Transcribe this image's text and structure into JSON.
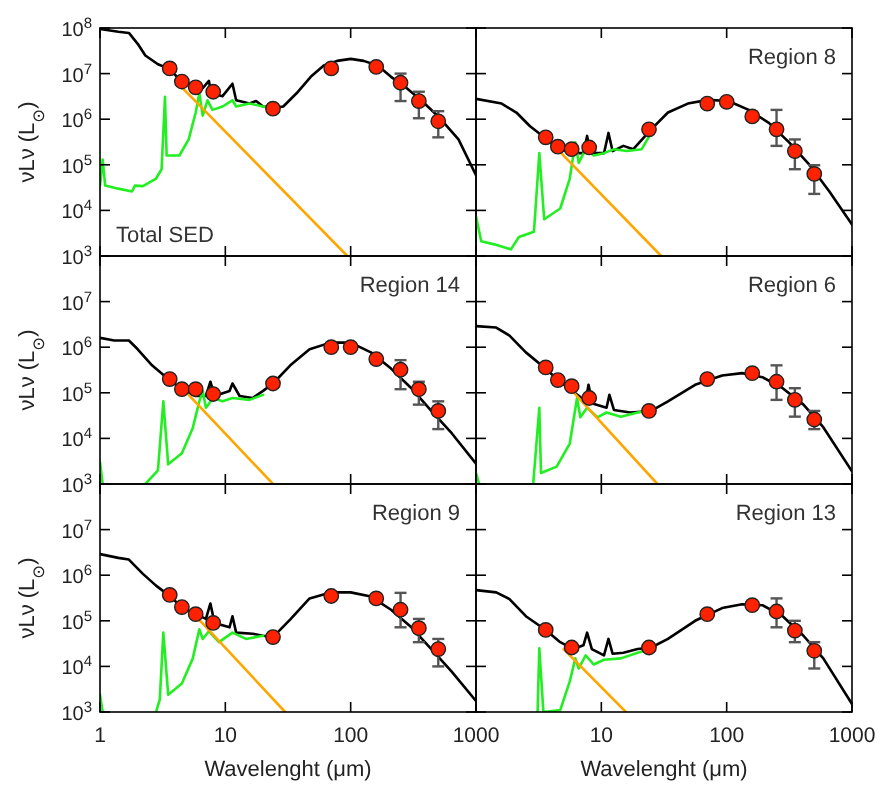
{
  "chart_data": [
    {
      "type": "line",
      "ylabel": "νLν (L$_{⊙}$)",
      "xlim": [
        1,
        1000
      ],
      "ylim": [
        1000,
        100000000
      ],
      "log": "xy",
      "tick_labels": "y",
      "xticks": [
        1,
        10,
        100,
        1000
      ],
      "yticks": [
        {
          "value": 1000,
          "label": "10$^{3}$"
        },
        {
          "value": 10000,
          "label": "10$^{4}$"
        },
        {
          "value": 100000,
          "label": "10$^{5}$"
        },
        {
          "value": 1000000,
          "label": "10$^{6}$"
        },
        {
          "value": 10000000,
          "label": "10$^{7}$"
        },
        {
          "value": 100000000,
          "label": "10$^{8}$"
        }
      ],
      "annotations": [
        "Total SED"
      ],
      "series": [
        {
          "color": "#000000",
          "x": [
            1,
            1.4,
            1.7,
            2,
            2.3,
            2.9,
            3.5,
            4.3,
            5.5,
            6.6,
            7.4,
            7.7,
            9.5,
            11.4,
            12.2,
            15.6,
            17.6,
            20,
            24,
            29,
            37,
            48,
            61,
            78,
            100,
            127,
            164,
            210,
            270,
            365,
            500,
            725,
            1000
          ],
          "values": [
            95000000.0,
            83000000.0,
            78000000.0,
            45000000.0,
            25000000.0,
            16000000.0,
            13000000.0,
            7600000.0,
            5500000.0,
            4800000.0,
            6900000.0,
            3700000.0,
            3200000.0,
            6000000.0,
            2600000.0,
            2200000.0,
            2500000.0,
            1900000.0,
            1750000.0,
            1900000.0,
            3700000.0,
            8500000.0,
            15000000.0,
            19000000.0,
            21000000.0,
            19000000.0,
            15000000.0,
            8500000.0,
            5200000.0,
            2600000.0,
            1150000.0,
            360000.0,
            59000.0
          ]
        },
        {
          "color": "#22ee22",
          "x": [
            1,
            1.05,
            1.1,
            1.4,
            1.8,
            1.9,
            2.2,
            2.8,
            3.1,
            3.3,
            3.4,
            4.3,
            5.1,
            5.8,
            6.2,
            6.6,
            7.2,
            7.9,
            9.5,
            11.4,
            12.2,
            15.6,
            20,
            24
          ],
          "values": [
            35000.0,
            130000.0,
            35000.0,
            30000.0,
            26000.0,
            35000.0,
            34000.0,
            50000.0,
            80000.0,
            3100000.0,
            160000.0,
            160000.0,
            360000.0,
            1400000.0,
            3700000.0,
            1200000.0,
            2600000.0,
            1600000.0,
            1900000.0,
            2600000.0,
            1900000.0,
            2200000.0,
            1900000.0,
            1750000.0
          ]
        },
        {
          "color": "#ffa500",
          "x": [
            4.5,
            94
          ],
          "values": [
            5000000.0,
            1000
          ]
        },
        {
          "type": "scatter",
          "marker": "circle",
          "color": "#ff2200",
          "x": [
            3.6,
            4.5,
            5.8,
            8,
            24,
            70,
            160,
            250,
            350,
            500
          ],
          "values": [
            13000000.0,
            6700000.0,
            5000000.0,
            4000000.0,
            1700000.0,
            13000000.0,
            14000000.0,
            6300000.0,
            2500000.0,
            900000.0
          ],
          "errors": [
            null,
            null,
            null,
            null,
            null,
            null,
            null,
            [
              2500000.0,
              10000000.0
            ],
            [
              1050000.0,
              4000000.0
            ],
            [
              400000.0,
              1500000.0
            ]
          ]
        }
      ]
    },
    {
      "type": "line",
      "xlim": [
        1,
        1000
      ],
      "ylim": [
        1000,
        100000000
      ],
      "log": "xy",
      "tick_labels": false,
      "xticks": [
        1,
        10,
        100,
        1000
      ],
      "yticks": [
        1000,
        10000,
        100000,
        1000000,
        10000000,
        100000000
      ],
      "annotations": [
        "Region 8"
      ],
      "series": [
        {
          "color": "#000000",
          "x": [
            1,
            1.6,
            2.1,
            2.7,
            3.5,
            4.7,
            6,
            7.2,
            7.7,
            8.2,
            10.5,
            11.4,
            12.3,
            15,
            18,
            25,
            34,
            49,
            71,
            103,
            150,
            217,
            315,
            460,
            660,
            1000
          ],
          "values": [
            2800000.0,
            2200000.0,
            1400000.0,
            700000.0,
            400000.0,
            220000.0,
            180000.0,
            180000.0,
            430000.0,
            180000.0,
            180000.0,
            500000.0,
            200000.0,
            260000.0,
            220000.0,
            600000.0,
            1400000.0,
            2200000.0,
            2650000.0,
            2500000.0,
            1600000.0,
            830000.0,
            310000.0,
            98000.0,
            26000.0,
            4900.0
          ]
        },
        {
          "color": "#22ee22",
          "x": [
            1,
            1.1,
            1.4,
            1.9,
            2.2,
            2.9,
            3.2,
            3.5,
            4.7,
            5.6,
            6.2,
            6.6,
            7.5,
            8.7,
            10.5,
            12.6,
            16,
            21,
            25
          ],
          "values": [
            7400.0,
            2100.0,
            1800.0,
            1400.0,
            2600.0,
            3400.0,
            180000.0,
            6400.0,
            11000.0,
            50000.0,
            310000.0,
            110000.0,
            220000.0,
            160000.0,
            180000.0,
            220000.0,
            200000.0,
            220000.0,
            500000.0
          ]
        },
        {
          "color": "#ffa500",
          "x": [
            4.7,
            30
          ],
          "values": [
            190000.0,
            1000
          ]
        },
        {
          "type": "scatter",
          "marker": "circle",
          "color": "#ff2200",
          "x": [
            3.6,
            4.5,
            5.8,
            8,
            24,
            70,
            100,
            160,
            250,
            350,
            500
          ],
          "values": [
            400000.0,
            250000.0,
            220000.0,
            240000.0,
            600000.0,
            2200000.0,
            2400000.0,
            1150000.0,
            600000.0,
            200000.0,
            63000.0
          ],
          "errors": [
            null,
            null,
            null,
            null,
            null,
            null,
            null,
            null,
            [
              260000.0,
              1600000.0
            ],
            [
              80000.0,
              360000.0
            ],
            [
              23000.0,
              98000.0
            ]
          ]
        }
      ]
    },
    {
      "type": "line",
      "ylabel": "νLν (L$_{⊙}$)",
      "xlim": [
        1,
        1000
      ],
      "ylim": [
        1000,
        100000000
      ],
      "log": "xy",
      "tick_labels": "y",
      "xticks": [
        1,
        10,
        100,
        1000
      ],
      "yticks": [
        {
          "value": 1000,
          "label": "10$^{3}$"
        },
        {
          "value": 10000,
          "label": "10$^{4}$"
        },
        {
          "value": 100000,
          "label": "10$^{5}$"
        },
        {
          "value": 1000000,
          "label": "10$^{6}$"
        },
        {
          "value": 10000000,
          "label": "10$^{7}$"
        },
        {
          "value": 100000000,
          "label": null
        }
      ],
      "annotations": [
        "Region 14"
      ],
      "series": [
        {
          "color": "#000000",
          "x": [
            1,
            1.3,
            1.7,
            2,
            2.6,
            3.5,
            4.5,
            5.8,
            7,
            7.6,
            8.2,
            10.8,
            11.4,
            13,
            16.5,
            20,
            24,
            33,
            47,
            69,
            100,
            145,
            210,
            305,
            440,
            640,
            1000
          ],
          "values": [
            1600000.0,
            1400000.0,
            1400000.0,
            900000.0,
            400000.0,
            200000.0,
            120000.0,
            85000.0,
            85000.0,
            175000.0,
            85000.0,
            110000.0,
            160000.0,
            85000.0,
            77000.0,
            110000.0,
            160000.0,
            400000.0,
            900000.0,
            1260000.0,
            1260000.0,
            770000.0,
            340000.0,
            126000.0,
            40000.0,
            13000.0,
            2800.0
          ]
        },
        {
          "color": "#22ee22",
          "x": [
            1,
            1.05,
            1.1,
            2.3,
            2.9,
            3.2,
            3.5,
            4.5,
            5.5,
            6.2,
            6.6,
            7,
            8,
            9.5,
            11.4,
            15.6,
            20
          ],
          "values": [
            3000.0,
            1000,
            null,
            1000,
            2000.0,
            65000.0,
            2700.0,
            4700.0,
            17000.0,
            65000.0,
            110000.0,
            47000.0,
            77000.0,
            65000.0,
            77000.0,
            70000.0,
            90000.0
          ]
        },
        {
          "color": "#ffa500",
          "x": [
            5.1,
            24
          ],
          "values": [
            90000.0,
            1000
          ]
        },
        {
          "type": "scatter",
          "marker": "circle",
          "color": "#ff2200",
          "x": [
            3.6,
            4.5,
            5.8,
            8,
            24,
            70,
            100,
            160,
            250,
            350,
            500
          ],
          "values": [
            200000.0,
            120000.0,
            120000.0,
            94000.0,
            160000.0,
            1000000.0,
            1000000.0,
            550000.0,
            320000.0,
            120000.0,
            40000.0
          ],
          "errors": [
            null,
            null,
            null,
            null,
            null,
            null,
            null,
            null,
            [
              120000.0,
              520000.0
            ],
            [
              55000.0,
              175000.0
            ],
            [
              16000.0,
              65000.0
            ]
          ]
        }
      ]
    },
    {
      "type": "line",
      "xlim": [
        1,
        1000
      ],
      "ylim": [
        1000,
        100000000
      ],
      "log": "xy",
      "tick_labels": false,
      "xticks": [
        1,
        10,
        100,
        1000
      ],
      "yticks": [
        1000,
        10000,
        100000,
        1000000,
        10000000,
        100000000
      ],
      "annotations": [
        "Region 6"
      ],
      "series": [
        {
          "color": "#000000",
          "x": [
            1,
            1.45,
            1.85,
            2.5,
            3.5,
            4.7,
            6,
            7.5,
            7.9,
            8.5,
            11,
            11.6,
            12.6,
            17,
            25,
            34,
            56,
            92,
            133,
            193,
            280,
            410,
            590,
            1000
          ],
          "values": [
            2900000.0,
            2700000.0,
            1800000.0,
            770000.0,
            360000.0,
            175000.0,
            106000.0,
            65000.0,
            150000.0,
            58000.0,
            47000.0,
            90000.0,
            42000.0,
            37000.0,
            40000.0,
            65000.0,
            150000.0,
            240000.0,
            270000.0,
            220000.0,
            126000.0,
            55000.0,
            17600.0,
            1900.0
          ]
        },
        {
          "color": "#22ee22",
          "x": [
            1,
            1.06,
            1.1,
            2.86,
            3.2,
            3.3,
            4.4,
            5.6,
            6.4,
            6.8,
            7.7,
            9.3,
            11,
            14.3,
            19.5,
            25
          ],
          "values": [
            1750.0,
            1000,
            null,
            1000,
            47000.0,
            1750.0,
            2400.0,
            7700.0,
            77000.0,
            29000.0,
            47000.0,
            29000.0,
            37000.0,
            30000.0,
            37000.0,
            42000.0
          ]
        },
        {
          "color": "#ffa500",
          "x": [
            5.6,
            28
          ],
          "values": [
            126000.0,
            1000
          ]
        },
        {
          "type": "scatter",
          "marker": "circle",
          "color": "#ff2200",
          "x": [
            3.6,
            4.5,
            5.8,
            8,
            24,
            70,
            160,
            250,
            350,
            500
          ],
          "values": [
            360000.0,
            190000.0,
            140000.0,
            77000.0,
            40000.0,
            200000.0,
            270000.0,
            175000.0,
            70000.0,
            26000.0
          ],
          "errors": [
            null,
            null,
            null,
            null,
            null,
            null,
            null,
            [
              70000.0,
              400000.0
            ],
            [
              30000.0,
              126000.0
            ],
            [
              16000.0,
              40000.0
            ]
          ]
        }
      ]
    },
    {
      "type": "line",
      "xlabel": "Wavelenght (μm)",
      "ylabel": "νLν (L$_{⊙}$)",
      "xlim": [
        1,
        1000
      ],
      "ylim": [
        1000,
        100000000
      ],
      "log": "xy",
      "xticks": [
        1,
        10,
        100,
        1000
      ],
      "yticks": [
        {
          "value": 1000,
          "label": "10$^{3}$"
        },
        {
          "value": 10000,
          "label": "10$^{4}$"
        },
        {
          "value": 100000,
          "label": "10$^{5}$"
        },
        {
          "value": 1000000,
          "label": "10$^{6}$"
        },
        {
          "value": 10000000,
          "label": "10$^{7}$"
        },
        {
          "value": 100000000,
          "label": null
        }
      ],
      "annotations": [
        "Region 9"
      ],
      "series": [
        {
          "color": "#000000",
          "x": [
            1,
            1.4,
            1.7,
            2.2,
            2.8,
            3.5,
            4.5,
            5.8,
            7,
            7.6,
            8.2,
            10.8,
            11.4,
            12.2,
            16.5,
            20,
            24,
            33,
            47,
            69,
            100,
            145,
            210,
            305,
            440,
            640,
            1000
          ],
          "values": [
            2900000.0,
            2400000.0,
            2200000.0,
            1070000.0,
            590000.0,
            370000.0,
            200000.0,
            140000.0,
            110000.0,
            240000.0,
            90000.0,
            72000.0,
            126000.0,
            55000.0,
            52000.0,
            47000.0,
            44000.0,
            107000.0,
            310000.0,
            420000.0,
            420000.0,
            340000.0,
            175000.0,
            72000.0,
            24000.0,
            7700.0,
            1750.0
          ]
        },
        {
          "color": "#22ee22",
          "x": [
            1,
            1.05,
            1.1,
            2.8,
            3,
            3.2,
            3.5,
            4.5,
            5.5,
            6.2,
            6.6,
            7.4,
            8.9,
            11.4,
            14.6,
            20
          ],
          "values": [
            2400.0,
            1000,
            null,
            1000,
            1900.0,
            55000.0,
            2400.0,
            4200.0,
            15000.0,
            65000.0,
            40000.0,
            59000.0,
            34000.0,
            55000.0,
            40000.0,
            47000.0
          ]
        },
        {
          "color": "#ffa500",
          "x": [
            5.5,
            30
          ],
          "values": [
            150000.0,
            1000
          ]
        },
        {
          "type": "scatter",
          "marker": "circle",
          "color": "#ff2200",
          "x": [
            3.6,
            4.5,
            5.8,
            8,
            24,
            70,
            160,
            250,
            350,
            500
          ],
          "values": [
            370000.0,
            200000.0,
            140000.0,
            90000.0,
            44000.0,
            350000.0,
            310000.0,
            175000.0,
            69000.0,
            24000.0
          ],
          "errors": [
            null,
            null,
            null,
            null,
            null,
            null,
            null,
            [
              72000.0,
              410000.0
            ],
            [
              34000.0,
              110000.0
            ],
            [
              10000.0,
              40000.0
            ]
          ]
        }
      ]
    },
    {
      "type": "line",
      "xlabel": "Wavelenght (μm)",
      "xlim": [
        1,
        1000
      ],
      "ylim": [
        1000,
        100000000
      ],
      "log": "xy",
      "tick_labels": "x",
      "xticks": [
        10,
        100,
        1000
      ],
      "yticks": [
        1000,
        10000,
        100000,
        1000000,
        10000000,
        100000000
      ],
      "annotations": [
        "Region 13"
      ],
      "series": [
        {
          "color": "#000000",
          "x": [
            1,
            1.45,
            1.85,
            2.5,
            3.6,
            4.7,
            6,
            7.2,
            7.7,
            8.4,
            10.5,
            11.4,
            12.3,
            15,
            19.5,
            25,
            34,
            56,
            92,
            133,
            193,
            280,
            410,
            590,
            1000
          ],
          "values": [
            470000.0,
            420000.0,
            300000.0,
            126000.0,
            63000.0,
            34000.0,
            24000.0,
            29000.0,
            55000.0,
            24000.0,
            17500.0,
            40000.0,
            19000.0,
            20000.0,
            24000.0,
            26000.0,
            40000.0,
            100000.0,
            190000.0,
            230000.0,
            220000.0,
            126000.0,
            47000.0,
            15000.0,
            1500.0
          ]
        },
        {
          "color": "#22ee22",
          "x": [
            3.1,
            3.2,
            3.45,
            4.7,
            5.6,
            6.2,
            6.6,
            7.5,
            8.7,
            10.5,
            14.3,
            19.5,
            25
          ],
          "values": [
            1000,
            25000.0,
            1000,
            1100.0,
            4700.0,
            15000.0,
            9000.0,
            17500.0,
            11000.0,
            14000.0,
            15000.0,
            20000.0,
            24000.0
          ]
        },
        {
          "color": "#ffa500",
          "x": [
            5,
            15.7
          ],
          "values": [
            24000.0,
            1000
          ]
        },
        {
          "type": "scatter",
          "marker": "circle",
          "color": "#ff2200",
          "x": [
            3.6,
            5.8,
            24,
            70,
            160,
            250,
            350,
            500
          ],
          "values": [
            63000.0,
            26000.0,
            26000.0,
            140000.0,
            220000.0,
            160000.0,
            61000.0,
            22000.0
          ],
          "errors": [
            null,
            null,
            null,
            null,
            null,
            [
              72000.0,
              310000.0
            ],
            [
              34000.0,
              100000.0
            ],
            [
              9000.0,
              34000.0
            ]
          ]
        }
      ]
    }
  ]
}
